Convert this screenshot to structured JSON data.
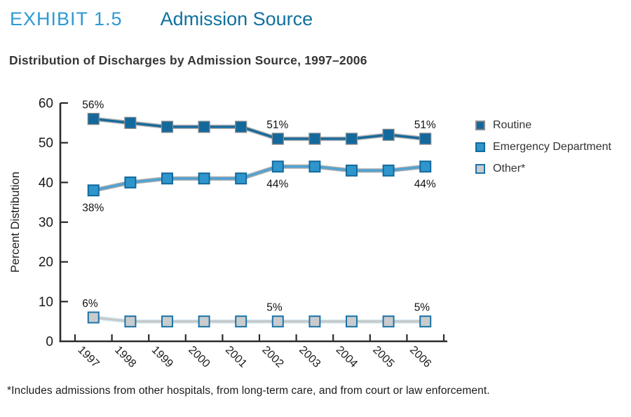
{
  "header": {
    "exhibit_label": "EXHIBIT 1.5",
    "title": "Admission Source"
  },
  "subtitle": "Distribution of Discharges by Admission Source, 1997–2006",
  "footnote": "*Includes admissions from other hospitals, from long-term care, and from court or law enforcement.",
  "colors": {
    "exhibit_label_blue": "#2D9AD3",
    "exhibit_title_blue": "#11719F",
    "axis": "#2b2b2b",
    "routine_blue": "#14699C",
    "emergency_blue": "#2E96CC",
    "emergency_line_blue": "#4FA3D4",
    "other_gray": "#C9CBCD",
    "other_border_blue": "#1B74A8"
  },
  "chart_data": {
    "type": "line",
    "title": "Distribution of Discharges by Admission Source, 1997–2006",
    "xlabel": "",
    "ylabel": "Percent Distribution",
    "ylim": [
      0,
      60
    ],
    "ytick_step": 10,
    "grid": false,
    "legend_position": "right",
    "categories": [
      "1997",
      "1998",
      "1999",
      "2000",
      "2001",
      "2002",
      "2003",
      "2004",
      "2005",
      "2006"
    ],
    "series": [
      {
        "name": "Routine",
        "values": [
          56,
          55,
          54,
          54,
          54,
          51,
          51,
          51,
          52,
          51
        ],
        "line_color": "#14699C",
        "halo_color": "#AEAEAE",
        "marker_fill": "#14699C",
        "marker_stroke": "#8C8C8C"
      },
      {
        "name": "Emergency Department",
        "values": [
          38,
          40,
          41,
          41,
          41,
          44,
          44,
          43,
          43,
          44
        ],
        "line_color": "#4FA3D4",
        "halo_color": "#ABABAB",
        "marker_fill": "#2E96CC",
        "marker_stroke": "#14699C"
      },
      {
        "name": "Other*",
        "values": [
          6,
          5,
          5,
          5,
          5,
          5,
          5,
          5,
          5,
          5
        ],
        "line_color": "#C6C8CA",
        "halo_color": "#D8EBF4",
        "marker_fill": "#C9CBCD",
        "marker_stroke": "#1B74A8"
      }
    ],
    "point_labels": [
      {
        "series": 0,
        "point": 0,
        "text": "56%",
        "placement": "above"
      },
      {
        "series": 0,
        "point": 5,
        "text": "51%",
        "placement": "above"
      },
      {
        "series": 0,
        "point": 9,
        "text": "51%",
        "placement": "above"
      },
      {
        "series": 1,
        "point": 0,
        "text": "38%",
        "placement": "below"
      },
      {
        "series": 1,
        "point": 5,
        "text": "44%",
        "placement": "below"
      },
      {
        "series": 1,
        "point": 9,
        "text": "44%",
        "placement": "below"
      },
      {
        "series": 2,
        "point": 0,
        "text": "6%",
        "placement": "above"
      },
      {
        "series": 2,
        "point": 5,
        "text": "5%",
        "placement": "above"
      },
      {
        "series": 2,
        "point": 9,
        "text": "5%",
        "placement": "above"
      }
    ]
  }
}
